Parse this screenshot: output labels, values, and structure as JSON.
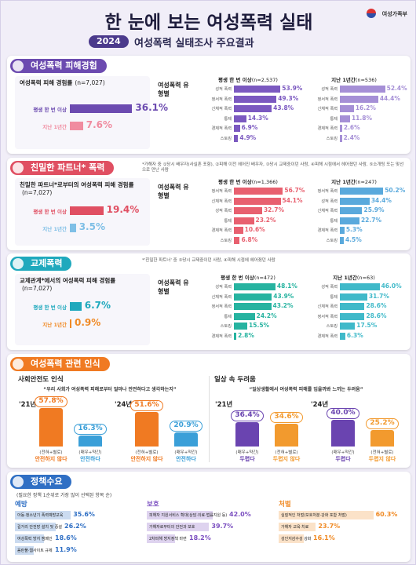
{
  "header": {
    "title": "한 눈에 보는 여성폭력 실태",
    "logo": "여성가족부",
    "year": "2024",
    "subtitle": "여성폭력 실태조사 주요결과"
  },
  "sections": [
    {
      "title": "여성폭력 피해경험",
      "color": "#6c4bb0",
      "rate": {
        "title": "여성폭력 피해 경험률",
        "n": "(n=7,027)",
        "categories": [
          "평생 한 번 이상",
          "지난 1년간"
        ],
        "values": [
          36.1,
          7.6
        ],
        "value_labels": [
          "36.1%",
          "7.6%"
        ],
        "colors": [
          "#6c4bb0",
          "#f08ca0"
        ]
      },
      "types": {
        "title": "여성폭력 유형별",
        "panels": [
          {
            "title": "평생 한 번 이상",
            "n": "(n=2,537)",
            "color": "#7b59c0",
            "categories": [
              "성적 폭력",
              "정서적 폭력",
              "신체적 폭력",
              "통제",
              "경제적 폭력",
              "스토킹"
            ],
            "values": [
              53.9,
              49.3,
              43.8,
              14.3,
              6.9,
              4.9
            ],
            "value_labels": [
              "53.9%",
              "49.3%",
              "43.8%",
              "14.3%",
              "6.9%",
              "4.9%"
            ]
          },
          {
            "title": "지난 1년간",
            "n": "(n=536)",
            "color": "#a58fd6",
            "categories": [
              "성적 폭력",
              "정서적 폭력",
              "신체적 폭력",
              "통제",
              "경제적 폭력",
              "스토킹"
            ],
            "values": [
              52.4,
              44.4,
              16.2,
              11.8,
              2.6,
              2.4
            ],
            "value_labels": [
              "52.4%",
              "44.4%",
              "16.2%",
              "11.8%",
              "2.6%",
              "2.4%"
            ]
          }
        ]
      }
    },
    {
      "title": "친밀한 파트너* 폭력",
      "color": "#e04f62",
      "note": "*가해자 중 ①당시 배우자(사실혼 포함), ②피해 이전 헤어진 배우자, ③당시 교제중이던 사람, ④피해 시점에서 헤어졌던 사람, ⑤소개팅 또는 맞선으로 만난 사람",
      "rate": {
        "title": "친밀한 파트너*로부터의 여성폭력 피해 경험률",
        "n": "(n=7,027)",
        "categories": [
          "평생 한 번 이상",
          "지난 1년간"
        ],
        "values": [
          19.4,
          3.5
        ],
        "value_labels": [
          "19.4%",
          "3.5%"
        ],
        "colors": [
          "#e04f62",
          "#7fbfe6"
        ]
      },
      "types": {
        "title": "여성폭력 유형별",
        "panels": [
          {
            "title": "평생 한 번 이상",
            "n": "(n=1,366)",
            "color": "#e8606f",
            "categories": [
              "정서적 폭력",
              "신체적 폭력",
              "성적 폭력",
              "통제",
              "경제적 폭력",
              "스토킹"
            ],
            "values": [
              56.7,
              54.1,
              32.7,
              23.2,
              10.6,
              6.8
            ],
            "value_labels": [
              "56.7%",
              "54.1%",
              "32.7%",
              "23.2%",
              "10.6%",
              "6.8%"
            ]
          },
          {
            "title": "지난 1년간",
            "n": "(n=247)",
            "color": "#5aa9dc",
            "categories": [
              "정서적 폭력",
              "성적 폭력",
              "신체적 폭력",
              "통제",
              "경제적 폭력",
              "스토킹"
            ],
            "values": [
              50.2,
              34.4,
              25.9,
              22.7,
              5.3,
              4.5
            ],
            "value_labels": [
              "50.2%",
              "34.4%",
              "25.9%",
              "22.7%",
              "5.3%",
              "4.5%"
            ]
          }
        ]
      }
    },
    {
      "title": "교제폭력",
      "color": "#1fa9bd",
      "note": "*'친밀한 파트너' 중 ③당시 교제중이던 사람, ④피해 시점에 헤어졌던 사람",
      "rate": {
        "title": "교제관계*에서의 여성폭력 피해 경험률",
        "n": "(n=7,027)",
        "categories": [
          "평생 한 번 이상",
          "지난 1년간"
        ],
        "values": [
          6.7,
          0.9
        ],
        "value_labels": [
          "6.7%",
          "0.9%"
        ],
        "colors": [
          "#1fa9bd",
          "#f08a24"
        ]
      },
      "types": {
        "title": "여성폭력 유형별",
        "panels": [
          {
            "title": "평생 한 번 이상",
            "n": "(n=472)",
            "color": "#26b3a0",
            "categories": [
              "성적 폭력",
              "신체적 폭력",
              "정서적 폭력",
              "통제",
              "스토킹",
              "경제적 폭력"
            ],
            "values": [
              48.1,
              43.9,
              43.2,
              24.2,
              15.5,
              2.8
            ],
            "value_labels": [
              "48.1%",
              "43.9%",
              "43.2%",
              "24.2%",
              "15.5%",
              "2.8%"
            ]
          },
          {
            "title": "지난 1년간",
            "n": "(n=63)",
            "color": "#3fb9c9",
            "categories": [
              "성적 폭력",
              "통제",
              "신체적 폭력",
              "정서적 폭력",
              "스토킹",
              "경제적 폭력"
            ],
            "values": [
              46.0,
              31.7,
              28.6,
              28.6,
              17.5,
              6.3
            ],
            "value_labels": [
              "46.0%",
              "31.7%",
              "28.6%",
              "28.6%",
              "17.5%",
              "6.3%"
            ]
          }
        ]
      }
    }
  ],
  "perception": {
    "title": "여성폭력 관련 인식",
    "color": "#f07a22",
    "groups": [
      {
        "title": "사회안전도 인식",
        "question": "“우리 사회가 여성폭력 피해로부터 얼마나 안전하다고 생각하는지”",
        "series": [
          {
            "name": "(전혀+별로)",
            "label": "안전하지 않다",
            "color": "#f07a22"
          },
          {
            "name": "(매우+약간)",
            "label": "안전하다",
            "color": "#3a9fd8"
          }
        ],
        "years": [
          {
            "year": "'21년",
            "values": [
              57.8,
              16.3
            ],
            "value_labels": [
              "57.8%",
              "16.3%"
            ]
          },
          {
            "year": "'24년",
            "values": [
              51.6,
              20.9
            ],
            "value_labels": [
              "51.6%",
              "20.9%"
            ]
          }
        ]
      },
      {
        "title": "일상 속 두려움",
        "question": "“일상생활에서 여성폭력 피해를 입을까봐 느끼는 두려움”",
        "series": [
          {
            "name": "(매우+약간)",
            "label": "두렵다",
            "color": "#6a44b0"
          },
          {
            "name": "(전혀+별로)",
            "label": "두렵지 않다",
            "color": "#f29a2e"
          }
        ],
        "years": [
          {
            "year": "'21년",
            "values": [
              36.4,
              34.6
            ],
            "value_labels": [
              "36.4%",
              "34.6%"
            ]
          },
          {
            "year": "'24년",
            "values": [
              40.0,
              25.2
            ],
            "value_labels": [
              "40.0%",
              "25.2%"
            ]
          }
        ]
      }
    ]
  },
  "policy": {
    "title": "정책수요",
    "color": "#2f6fc4",
    "note": "(필요한 정책 1순위로 가장 많이 선택된 항목 순)",
    "groups": [
      {
        "title": "예방",
        "color": "#2f6fc4",
        "categories": [
          "아동·청소년기 폭력예방교육",
          "길거리 안전망 설치 및 증설",
          "여성폭력 방지 캠페인",
          "음란물·웹사이트 규제"
        ],
        "values": [
          35.6,
          26.2,
          18.6,
          11.9
        ],
        "value_labels": [
          "35.6%",
          "26.2%",
          "18.6%",
          "11.9%"
        ]
      },
      {
        "title": "보호",
        "color": "#7b4fc0",
        "categories": [
          "피해자 지원서비스 확대(상담·의료·법률지원 등)",
          "가해자로부터의 안전과 보호",
          "2차피해 방지정책 마련"
        ],
        "values": [
          42.0,
          39.7,
          18.2
        ],
        "value_labels": [
          "42.0%",
          "39.7%",
          "18.2%"
        ]
      },
      {
        "title": "처벌",
        "color": "#f08a24",
        "categories": [
          "실질적인 처벌(보호처분·강화 포함 처벌)",
          "가해자 교육·치료",
          "성인지감수성 강화"
        ],
        "values": [
          60.3,
          23.7,
          16.1
        ],
        "value_labels": [
          "60.3%",
          "23.7%",
          "16.1%"
        ]
      }
    ]
  }
}
